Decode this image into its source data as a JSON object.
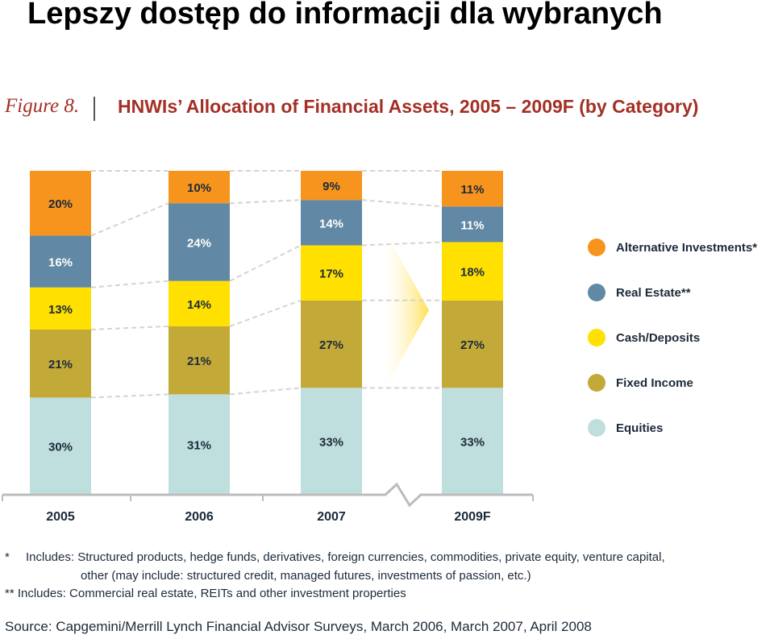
{
  "slide": {
    "title": "Lepszy dostęp do informacji dla wybranych"
  },
  "figure": {
    "label": "Figure 8.",
    "title": "HNWIs’ Allocation of Financial Assets, 2005 – 2009F (by Category)"
  },
  "chart_data": {
    "type": "bar",
    "stacked": true,
    "percent_stacked": true,
    "categories": [
      "2005",
      "2006",
      "2007",
      "2009F"
    ],
    "series": [
      {
        "name": "Equities",
        "color": "#bfdede",
        "values": [
          30,
          31,
          33,
          33
        ],
        "labels": [
          "30%",
          "31%",
          "33%",
          "33%"
        ]
      },
      {
        "name": "Fixed Income",
        "color": "#c3aa38",
        "values": [
          21,
          21,
          27,
          27
        ],
        "labels": [
          "21%",
          "21%",
          "27%",
          "27%"
        ]
      },
      {
        "name": "Cash/Deposits",
        "color": "#ffe000",
        "values": [
          13,
          14,
          17,
          18
        ],
        "labels": [
          "13%",
          "14%",
          "17%",
          "18%"
        ]
      },
      {
        "name": "Real Estate**",
        "color": "#6188a4",
        "values": [
          16,
          24,
          14,
          11
        ],
        "labels": [
          "16%",
          "24%",
          "14%",
          "11%"
        ]
      },
      {
        "name": "Alternative Investments*",
        "color": "#f7941d",
        "values": [
          20,
          10,
          9,
          11
        ],
        "labels": [
          "20%",
          "10%",
          "9%",
          "11%"
        ]
      }
    ],
    "legend_order": [
      "Alternative Investments*",
      "Real Estate**",
      "Cash/Deposits",
      "Fixed Income",
      "Equities"
    ],
    "legend": "right",
    "axis_break": "between 2007 and 2009F",
    "ylim": [
      0,
      100
    ],
    "grid": false
  },
  "notes": {
    "note1_marker": "*",
    "note1_text": "Includes: Structured products, hedge funds, derivatives, foreign currencies, commodities, private equity, venture capital,",
    "note1_cont": "other (may include: structured credit, managed futures, investments of passion, etc.)",
    "note2": "** Includes: Commercial real estate, REITs and other investment properties"
  },
  "source": "Source: Capgemini/Merrill Lynch Financial Advisor Surveys, March 2006, March 2007, April 2008"
}
